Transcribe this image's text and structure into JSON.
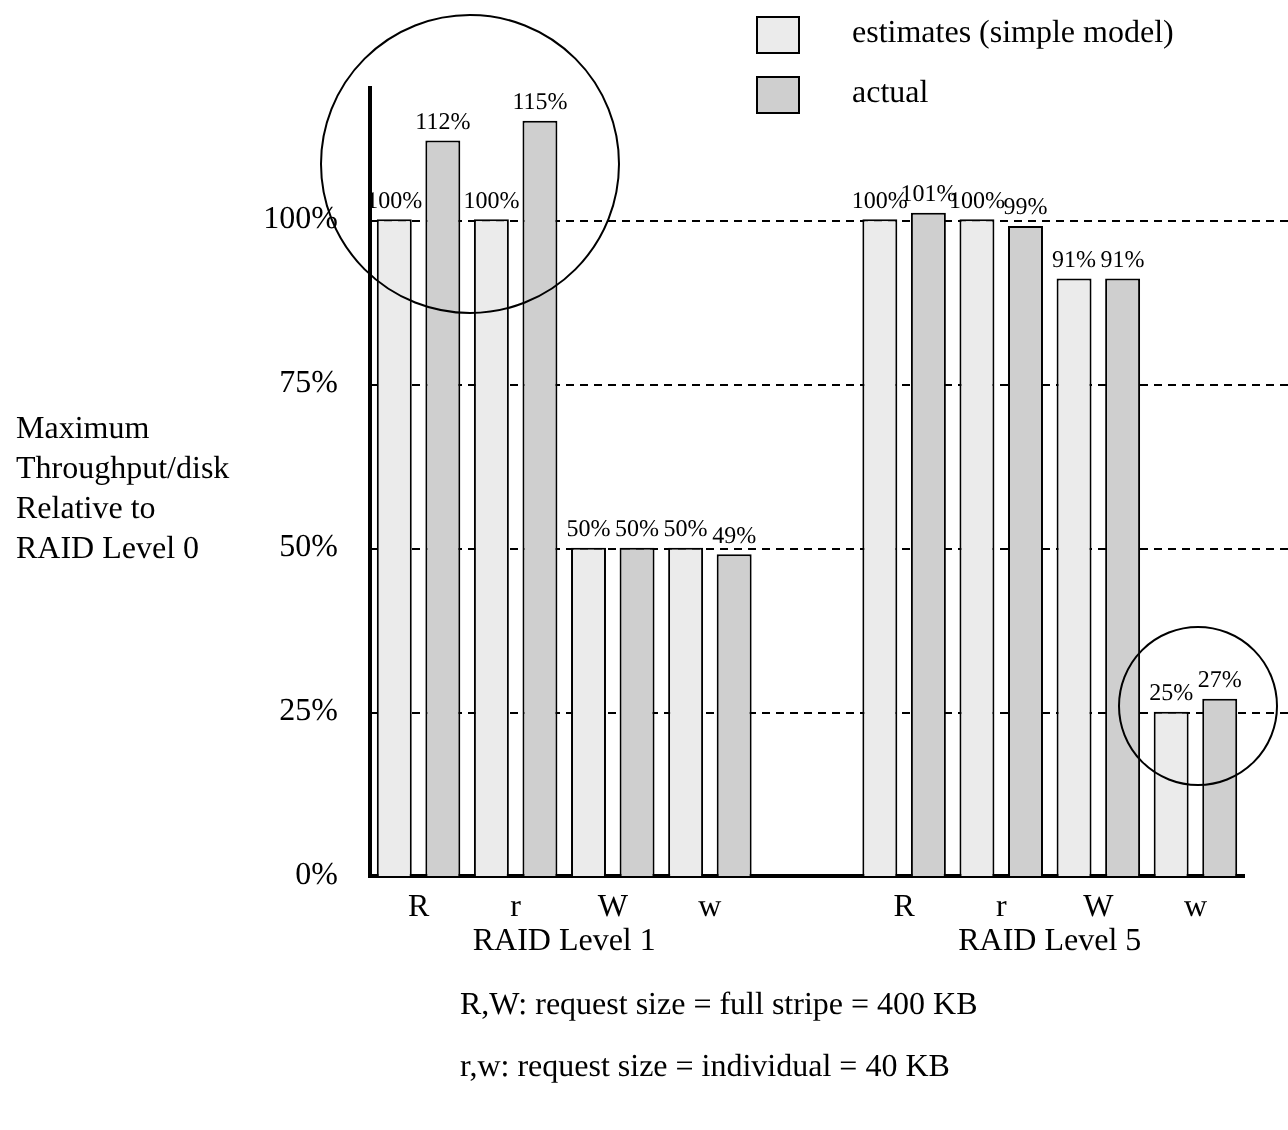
{
  "chart_data": {
    "type": "bar",
    "ylabel": "Maximum Throughput/disk Relative to RAID Level 0",
    "categories": [
      "R",
      "r",
      "W",
      "w",
      null,
      "R",
      "r",
      "W",
      "w"
    ],
    "series": [
      {
        "name": "estimates (simple model)",
        "color": "#ebebeb",
        "values": [
          100,
          100,
          50,
          50,
          null,
          100,
          100,
          91,
          25
        ],
        "value_labels": [
          "100%",
          "100%",
          "50%",
          "50%",
          null,
          "100%",
          "100%",
          "91%",
          "25%"
        ]
      },
      {
        "name": "actual",
        "color": "#cfcfcf",
        "values": [
          112,
          115,
          50,
          49,
          null,
          101,
          99,
          91,
          27
        ],
        "value_labels": [
          "112%",
          "115%",
          "50%",
          "49%",
          null,
          "101%",
          "99%",
          "91%",
          "27%"
        ]
      }
    ],
    "ylim": [
      0,
      120
    ],
    "yticks": [
      {
        "value": 0,
        "label": "0%"
      },
      {
        "value": 25,
        "label": "25%"
      },
      {
        "value": 50,
        "label": "50%"
      },
      {
        "value": 75,
        "label": "75%"
      },
      {
        "value": 100,
        "label": "100%"
      }
    ],
    "grid": "y",
    "legend": "top right",
    "annotations": [
      "RAID Level 1",
      "RAID Level 5",
      "R,W: request size = full stripe = 400 KB",
      "r,w: request size = individual = 40 KB"
    ]
  }
}
